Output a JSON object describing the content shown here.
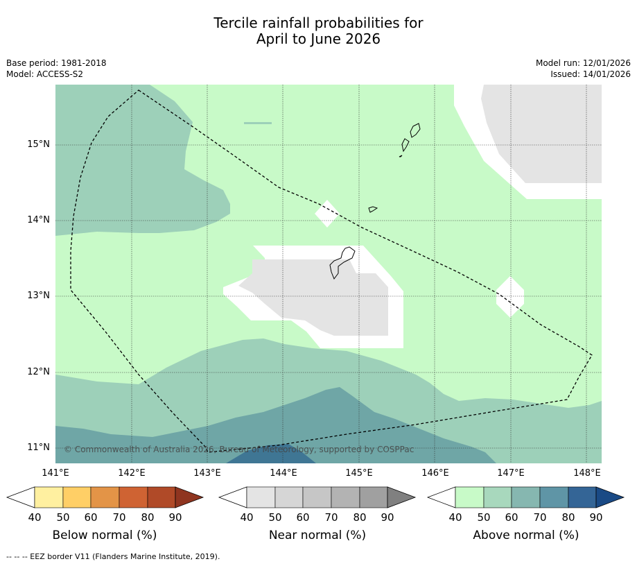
{
  "title_line1": "Tercile rainfall probabilities for",
  "title_line2": "April to June 2026",
  "meta_left": {
    "base_period": "Base period: 1981-2018",
    "model": "Model: ACCESS-S2"
  },
  "meta_right": {
    "model_run": "Model run: 12/01/2026",
    "issued": "Issued: 14/01/2026"
  },
  "map": {
    "lat_labels": [
      "15°N",
      "14°N",
      "13°N",
      "12°N",
      "11°N"
    ],
    "lon_labels": [
      "141°E",
      "142°E",
      "143°E",
      "144°E",
      "145°E",
      "146°E",
      "147°E",
      "148°E"
    ],
    "copyright": "© Commonwealth of Australia 2026, Bureau of Meteorology, supported by COSPPac",
    "colors": {
      "background_above": "#c8fac8",
      "above_50_60": "#9dd0b9",
      "above_60_70": "#6fa6a6",
      "above_70_80": "#3f7694",
      "near_normal": "#e4e4e4",
      "white_band": "#ffffff"
    }
  },
  "colorbars": [
    {
      "label": "Below normal (%)",
      "ticks": [
        "40",
        "50",
        "60",
        "70",
        "80",
        "90"
      ],
      "colors": [
        "#ffffff",
        "#fff0a0",
        "#ffcf66",
        "#e39447",
        "#cf6333",
        "#b04a28",
        "#8f3520"
      ]
    },
    {
      "label": "Near normal (%)",
      "ticks": [
        "40",
        "50",
        "60",
        "70",
        "80",
        "90"
      ],
      "colors": [
        "#ffffff",
        "#e4e4e4",
        "#d6d6d6",
        "#c6c6c6",
        "#b3b3b3",
        "#a0a0a0",
        "#808080"
      ]
    },
    {
      "label": "Above normal (%)",
      "ticks": [
        "40",
        "50",
        "60",
        "70",
        "80",
        "90"
      ],
      "colors": [
        "#ffffff",
        "#c8fac8",
        "#a8d8bd",
        "#86b7b0",
        "#5f95a6",
        "#346596",
        "#1a4a85"
      ]
    }
  ],
  "footer": "--  --  -- EEZ border V11 (Flanders Marine Institute, 2019)."
}
